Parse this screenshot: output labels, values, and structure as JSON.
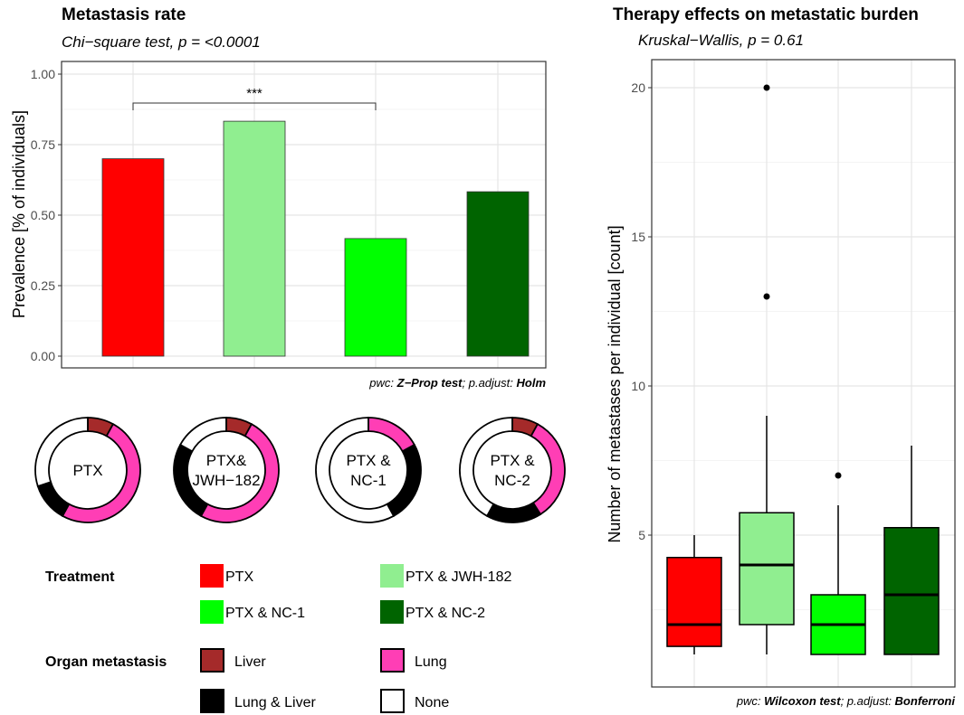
{
  "chart_data": [
    {
      "type": "bar",
      "title": "Metastasis rate",
      "subtitle": "Chi−square test, p = <0.0001",
      "ylabel": "Prevalence [% of individuals]",
      "xlabel": "",
      "ylim": [
        0,
        1.0
      ],
      "yticks": [
        "0.00",
        "0.25",
        "0.50",
        "0.75",
        "1.00"
      ],
      "ytick_values": [
        0,
        0.25,
        0.5,
        0.75,
        1.0
      ],
      "categories": [
        "PTX",
        "PTX & JWH-182",
        "PTX & NC-1",
        "PTX & NC-2"
      ],
      "values": [
        0.7,
        0.833,
        0.417,
        0.583
      ],
      "colors": [
        "#ff0000",
        "#90ee90",
        "#00ff00",
        "#006400"
      ],
      "bracket": {
        "from": "PTX",
        "to": "PTX & NC-1",
        "label": "***"
      },
      "caption_prefix": "pwc: ",
      "caption_test": "Z−Prop test",
      "caption_mid": "; p.adjust: ",
      "caption_adjust": "Holm",
      "grid": true
    },
    {
      "type": "pie",
      "subtype": "donut",
      "donuts": [
        {
          "label_lines": [
            "PTX"
          ],
          "fractions": {
            "Liver": 0.08,
            "Lung": 0.5,
            "Lung & Liver": 0.12,
            "None": 0.3
          }
        },
        {
          "label_lines": [
            "PTX&",
            "JWH−182"
          ],
          "fractions": {
            "Liver": 0.08,
            "Lung": 0.5,
            "Lung & Liver": 0.25,
            "None": 0.17
          }
        },
        {
          "label_lines": [
            "PTX &",
            "NC-1"
          ],
          "fractions": {
            "Liver": 0,
            "Lung": 0.17,
            "Lung & Liver": 0.25,
            "None": 0.58
          }
        },
        {
          "label_lines": [
            "PTX &",
            "NC-2"
          ],
          "fractions": {
            "Liver": 0.08,
            "Lung": 0.33,
            "Lung & Liver": 0.17,
            "None": 0.42
          }
        }
      ],
      "order": [
        "Liver",
        "Lung",
        "Lung & Liver",
        "None"
      ]
    },
    {
      "type": "box",
      "title": "Therapy effects on metastatic burden",
      "subtitle": "Kruskal−Wallis, p = 0.61",
      "ylabel": "Number of metastases per individual [count]",
      "ylim": [
        0,
        21
      ],
      "yticks": [
        "5",
        "10",
        "15",
        "20"
      ],
      "ytick_values": [
        5,
        10,
        15,
        20
      ],
      "categories": [
        "PTX",
        "PTX & JWH-182",
        "PTX & NC-1",
        "PTX & NC-2"
      ],
      "boxes": [
        {
          "min": 1,
          "q1": 1.27,
          "median": 2,
          "q3": 4.25,
          "max": 5,
          "outliers": []
        },
        {
          "min": 1,
          "q1": 2,
          "median": 4,
          "q3": 5.75,
          "max": 9,
          "outliers": [
            13,
            20
          ]
        },
        {
          "min": 1,
          "q1": 1,
          "median": 2,
          "q3": 3,
          "max": 6,
          "outliers": [
            7
          ]
        },
        {
          "min": 1,
          "q1": 1,
          "median": 3,
          "q3": 5.25,
          "max": 8,
          "outliers": []
        }
      ],
      "colors": [
        "#ff0000",
        "#90ee90",
        "#00ff00",
        "#006400"
      ],
      "caption_prefix": "pwc: ",
      "caption_test": "Wilcoxon test",
      "caption_mid": "; p.adjust: ",
      "caption_adjust": "Bonferroni"
    }
  ],
  "legend": {
    "treatment_title": "Treatment",
    "treatments": [
      {
        "label": "PTX",
        "color": "#ff0000"
      },
      {
        "label": "PTX & JWH-182",
        "color": "#90ee90"
      },
      {
        "label": "PTX & NC-1",
        "color": "#00ff00"
      },
      {
        "label": "PTX & NC-2",
        "color": "#006400"
      }
    ],
    "organ_title": "Organ metastasis",
    "organs": [
      {
        "label": "Liver",
        "color": "#a52a2a"
      },
      {
        "label": "Lung",
        "color": "#ff3eb5"
      },
      {
        "label": "Lung & Liver",
        "color": "#000000"
      },
      {
        "label": "None",
        "color": "#ffffff"
      }
    ]
  }
}
